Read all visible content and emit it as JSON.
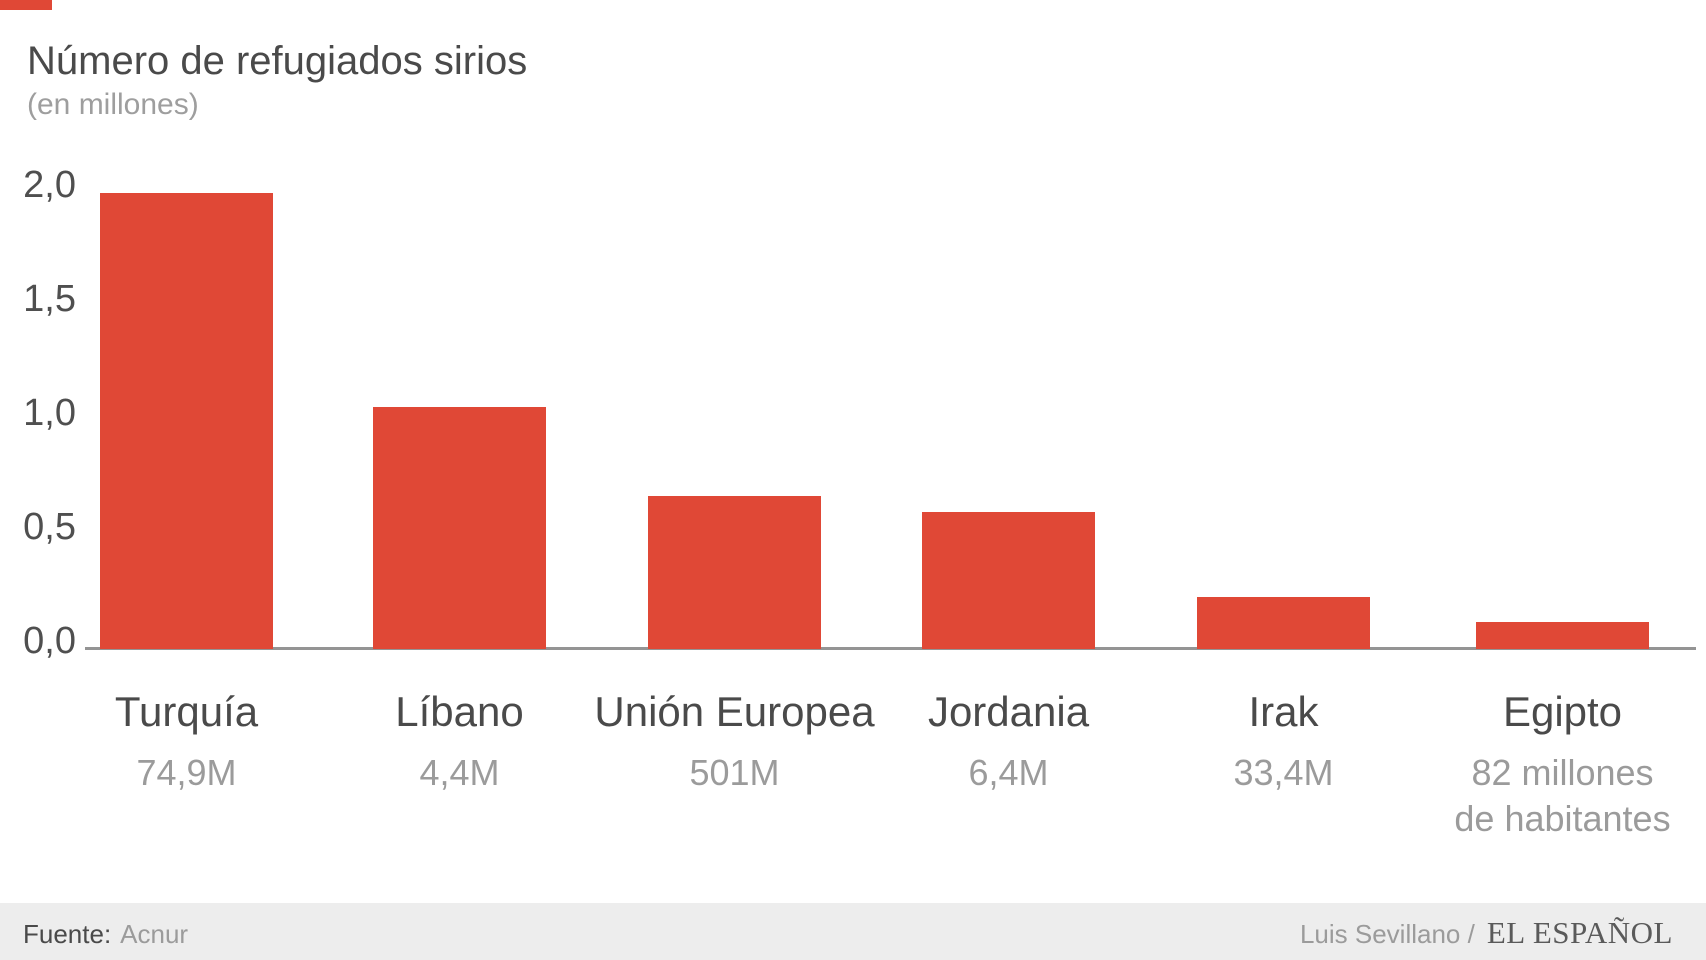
{
  "header": {
    "title": "Número de refugiados sirios",
    "subtitle": "(en millones)"
  },
  "chart_data": {
    "type": "bar",
    "title": "Número de refugiados sirios",
    "subtitle": "(en millones)",
    "categories": [
      "Turquía",
      "Líbano",
      "Unión Europea",
      "Jordania",
      "Irak",
      "Egipto"
    ],
    "values": [
      2.0,
      1.06,
      0.67,
      0.6,
      0.23,
      0.12
    ],
    "category_sublabels": [
      "74,9M",
      "4,4M",
      "501M",
      "6,4M",
      "33,4M",
      "82 millones\nde habitantes"
    ],
    "ylim": [
      0,
      2
    ],
    "yticks": [
      {
        "value": 2.0,
        "label": "2,0"
      },
      {
        "value": 1.5,
        "label": "1,5"
      },
      {
        "value": 1.0,
        "label": "1,0"
      },
      {
        "value": 0.5,
        "label": "0,5"
      },
      {
        "value": 0.0,
        "label": "0,0"
      }
    ],
    "grid": false,
    "legend": "none",
    "bar_color": "#e04836"
  },
  "footer": {
    "source_label": "Fuente:",
    "source_value": "Acnur",
    "credit": "Luis Sevillano /",
    "brand": "EL ESPAÑOL"
  },
  "colors": {
    "bar": "#e04836",
    "corner_mark": "#e04836",
    "title_text": "#4a4a4a",
    "subtitle_text": "#9e9e9e",
    "tick_text": "#4f4f4f",
    "axis_line": "#949494",
    "category_text": "#4a4a4a",
    "sublabel_text": "#9b9b9b",
    "footer_bg": "#ededed",
    "footer_text": "#4a4a4a",
    "footer_muted": "#9b9b9b",
    "brand_text": "#5a5a5a"
  }
}
